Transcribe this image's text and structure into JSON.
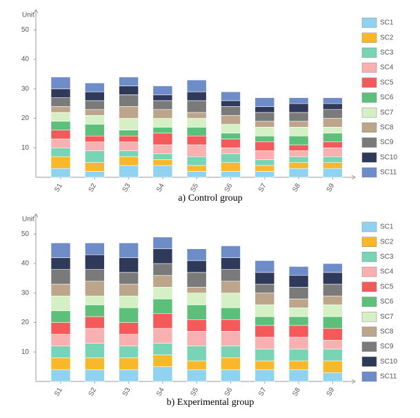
{
  "chart_data": [
    {
      "type": "stacked-bar",
      "caption": "a) Control group",
      "y_label": "Unit",
      "categories": [
        "S1",
        "S2",
        "S3",
        "S4",
        "S5",
        "S6",
        "S7",
        "S8",
        "S9"
      ],
      "ylim": [
        0,
        55
      ],
      "yticks": [
        10,
        20,
        30,
        40,
        50
      ],
      "legend": "right",
      "series": [
        {
          "name": "SC1",
          "color": "#8fd3f0",
          "values": [
            3,
            2,
            4,
            4,
            2,
            2,
            2,
            3,
            3
          ]
        },
        {
          "name": "SC2",
          "color": "#f9b82a",
          "values": [
            4,
            3,
            3,
            2,
            2,
            3,
            2,
            2,
            2
          ]
        },
        {
          "name": "SC3",
          "color": "#77d4b4",
          "values": [
            3,
            4,
            2,
            2,
            3,
            3,
            2,
            2,
            2
          ]
        },
        {
          "name": "SC4",
          "color": "#f9b0b0",
          "values": [
            3,
            3,
            3,
            3,
            4,
            2,
            3,
            2,
            3
          ]
        },
        {
          "name": "SC5",
          "color": "#f55a5a",
          "values": [
            3,
            2,
            2,
            4,
            3,
            3,
            3,
            2,
            2
          ]
        },
        {
          "name": "SC6",
          "color": "#5cbf7a",
          "values": [
            3,
            4,
            2,
            2,
            3,
            2,
            2,
            3,
            3
          ]
        },
        {
          "name": "SC7",
          "color": "#d6f0c6",
          "values": [
            3,
            3,
            4,
            3,
            3,
            3,
            3,
            3,
            2
          ]
        },
        {
          "name": "SC8",
          "color": "#bca58a",
          "values": [
            2,
            2,
            4,
            3,
            2,
            3,
            2,
            2,
            3
          ]
        },
        {
          "name": "SC9",
          "color": "#7a7a7a",
          "values": [
            3,
            3,
            4,
            3,
            4,
            3,
            3,
            3,
            3
          ]
        },
        {
          "name": "SC10",
          "color": "#2f3a5a",
          "values": [
            3,
            3,
            3,
            2,
            3,
            2,
            2,
            3,
            2
          ]
        },
        {
          "name": "SC11",
          "color": "#6d8cc8",
          "values": [
            4,
            3,
            3,
            3,
            4,
            3,
            3,
            2,
            2
          ]
        }
      ]
    },
    {
      "type": "stacked-bar",
      "caption": "b) Experimental group",
      "y_label": "Unit",
      "categories": [
        "S1",
        "S2",
        "S3",
        "S4",
        "S5",
        "S6",
        "S7",
        "S8",
        "S9"
      ],
      "ylim": [
        0,
        55
      ],
      "yticks": [
        10,
        20,
        30,
        40,
        50
      ],
      "legend": "right",
      "series": [
        {
          "name": "SC1",
          "color": "#8fd3f0",
          "values": [
            4,
            4,
            4,
            5,
            4,
            4,
            4,
            4,
            3
          ]
        },
        {
          "name": "SC2",
          "color": "#f9b82a",
          "values": [
            4,
            4,
            4,
            4,
            3,
            4,
            3,
            3,
            4
          ]
        },
        {
          "name": "SC3",
          "color": "#77d4b4",
          "values": [
            4,
            5,
            4,
            4,
            5,
            4,
            4,
            4,
            4
          ]
        },
        {
          "name": "SC4",
          "color": "#f9b0b0",
          "values": [
            4,
            5,
            4,
            5,
            5,
            5,
            4,
            4,
            3
          ]
        },
        {
          "name": "SC5",
          "color": "#f55a5a",
          "values": [
            4,
            4,
            4,
            5,
            4,
            4,
            4,
            4,
            4
          ]
        },
        {
          "name": "SC6",
          "color": "#5cbf7a",
          "values": [
            4,
            4,
            5,
            5,
            5,
            4,
            3,
            3,
            4
          ]
        },
        {
          "name": "SC7",
          "color": "#d6f0c6",
          "values": [
            5,
            3,
            4,
            4,
            4,
            5,
            4,
            3,
            4
          ]
        },
        {
          "name": "SC8",
          "color": "#bca58a",
          "values": [
            4,
            5,
            4,
            4,
            2,
            4,
            4,
            3,
            3
          ]
        },
        {
          "name": "SC9",
          "color": "#7a7a7a",
          "values": [
            5,
            4,
            4,
            4,
            5,
            4,
            3,
            4,
            4
          ]
        },
        {
          "name": "SC10",
          "color": "#2f3a5a",
          "values": [
            4,
            5,
            5,
            5,
            4,
            4,
            4,
            4,
            4
          ]
        },
        {
          "name": "SC11",
          "color": "#6d8cc8",
          "values": [
            5,
            4,
            5,
            4,
            4,
            4,
            4,
            3,
            3
          ]
        }
      ]
    }
  ]
}
